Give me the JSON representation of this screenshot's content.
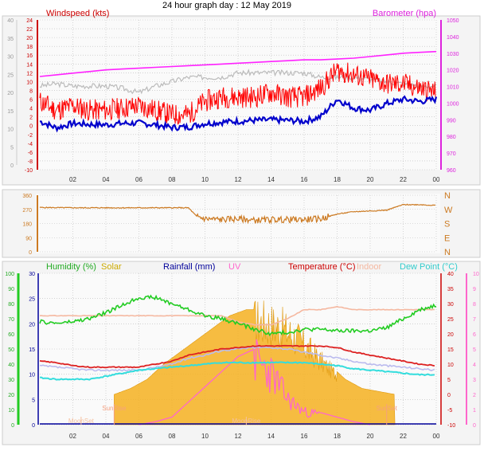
{
  "title": "24 hour graph day : 12 May 2019",
  "colors": {
    "wind": "#ff0000",
    "wind_avg": "#0000cc",
    "gust_bg": "#bbbbbb",
    "baro": "#ff22ff",
    "direction": "#cc7a22",
    "humidity": "#22cc22",
    "solar": "#f5b020",
    "rain": "#000099",
    "uv": "#ff66cc",
    "temp": "#dd2222",
    "indoor": "#f5b8a0",
    "dew": "#33dddd",
    "feels": "#bbbbee",
    "grid": "#bbbbbb"
  },
  "chart_data": [
    {
      "type": "line",
      "name": "wind",
      "left_title": "Windspeed (kts)",
      "right_title": "Barometer (hpa)",
      "x_ticks": [
        "02",
        "04",
        "06",
        "08",
        "10",
        "12",
        "14",
        "16",
        "18",
        "20",
        "22",
        "00"
      ],
      "left_outer_ticks": [
        "0",
        "5",
        "10",
        "15",
        "20",
        "25",
        "30",
        "35",
        "40"
      ],
      "left_inner_ticks": [
        "-10",
        "-8",
        "-6",
        "-4",
        "-2",
        "0",
        "2",
        "4",
        "6",
        "8",
        "10",
        "12",
        "14",
        "16",
        "18",
        "20",
        "22",
        "24"
      ],
      "right_ticks": [
        "960",
        "970",
        "980",
        "990",
        "1000",
        "1010",
        "1020",
        "1030",
        "1040",
        "1050"
      ],
      "ylim_wind": [
        -10,
        24
      ],
      "ylim_baro": [
        960,
        1050
      ],
      "x_hours": [
        0,
        1,
        2,
        3,
        4,
        5,
        6,
        7,
        8,
        9,
        10,
        11,
        12,
        13,
        14,
        15,
        16,
        17,
        18,
        19,
        20,
        21,
        22,
        23,
        24
      ],
      "wind_avg": [
        1,
        -0.5,
        0.5,
        0.3,
        0.2,
        0.5,
        0.6,
        0.2,
        -0.4,
        -0.3,
        0.5,
        0.8,
        1,
        1.2,
        1.3,
        1.2,
        1,
        2,
        6,
        4,
        3.5,
        5,
        6,
        5.5,
        6
      ],
      "wind_gust": [
        5,
        3,
        4,
        3,
        3,
        3.5,
        4,
        3,
        2,
        2,
        5,
        6,
        6,
        6,
        7,
        6,
        6,
        8,
        12,
        11,
        10,
        9,
        9,
        8,
        7
      ],
      "gust_top": [
        9,
        9.5,
        9,
        9,
        9,
        8.5,
        7.5,
        9,
        10,
        11,
        11,
        11,
        12,
        12,
        12,
        12,
        12,
        11,
        11,
        11,
        10.5,
        10,
        9.5,
        9,
        9
      ],
      "baro": [
        1016,
        1017,
        1018,
        1019,
        1020,
        1020.5,
        1021,
        1021.5,
        1022,
        1022.5,
        1023,
        1023.5,
        1024,
        1024.5,
        1025,
        1025.5,
        1026,
        1026,
        1026.5,
        1027,
        1028,
        1029,
        1030,
        1030.5,
        1031
      ]
    },
    {
      "type": "line",
      "name": "direction",
      "left_ticks": [
        "0",
        "90",
        "180",
        "270",
        "360"
      ],
      "right_ticks": [
        "N",
        "W",
        "S",
        "E",
        "N"
      ],
      "ylim": [
        0,
        360
      ],
      "x_hours": [
        0,
        2,
        4,
        6,
        8,
        9,
        9.5,
        10,
        11,
        12,
        13,
        14,
        15,
        16,
        17,
        18,
        19,
        20,
        21,
        22,
        23,
        24
      ],
      "values": [
        282,
        280,
        280,
        280,
        280,
        280,
        225,
        210,
        205,
        210,
        200,
        205,
        205,
        205,
        210,
        240,
        255,
        260,
        265,
        300,
        300,
        295
      ]
    },
    {
      "type": "line",
      "name": "climate",
      "labels": {
        "humidity": "Humidity (%)",
        "solar": "Solar",
        "rain": "Rainfall (mm)",
        "uv": "UV",
        "temp": "Temperature (°C)",
        "indoor": "Indoor",
        "dew": "Dew Point (°C)",
        "moonset": "MoonSet",
        "sunrise": "SunRise",
        "moonrise": "MoonRise",
        "sunset": "SunSet"
      },
      "x_ticks": [
        "02",
        "04",
        "06",
        "08",
        "10",
        "12",
        "14",
        "16",
        "18",
        "20",
        "22",
        "00"
      ],
      "hum_ticks": [
        "0",
        "10",
        "20",
        "30",
        "40",
        "50",
        "60",
        "70",
        "80",
        "90",
        "100"
      ],
      "rain_ticks": [
        "0",
        "5",
        "10",
        "15",
        "20",
        "25",
        "30"
      ],
      "temp_ticks": [
        "-10",
        "-5",
        "0",
        "5",
        "10",
        "15",
        "20",
        "25",
        "30",
        "35",
        "40"
      ],
      "uv_ticks": [
        "0",
        "1",
        "2",
        "3",
        "4",
        "5",
        "6",
        "7",
        "8",
        "9",
        "10"
      ],
      "ylim_temp": [
        -10,
        40
      ],
      "ylim_hum": [
        0,
        100
      ],
      "ylim_uv": [
        0,
        10
      ],
      "x_hours": [
        0,
        1,
        2,
        3,
        4,
        5,
        6,
        7,
        8,
        9,
        10,
        11,
        12,
        13,
        14,
        15,
        16,
        17,
        18,
        19,
        20,
        21,
        22,
        23,
        24
      ],
      "humidity": [
        68,
        67,
        68,
        70,
        74,
        79,
        84,
        84,
        80,
        76,
        72,
        70,
        67,
        63,
        60,
        61,
        63,
        63,
        62,
        62,
        62,
        64,
        70,
        76,
        79
      ],
      "temp": [
        11,
        10.5,
        9.5,
        9,
        9,
        9,
        9,
        10,
        11,
        13,
        14,
        15,
        15.5,
        16,
        16,
        16,
        16,
        16,
        15.5,
        14,
        13,
        12,
        11,
        10,
        9.5
      ],
      "dew": [
        5.5,
        5,
        5,
        5,
        6,
        7,
        8,
        8.5,
        9,
        9.5,
        10,
        10.5,
        10.5,
        10.5,
        10.5,
        10.5,
        10.5,
        10,
        9.5,
        8.5,
        8,
        7.5,
        7,
        6.5,
        6.5
      ],
      "feels": [
        9.5,
        9,
        8.5,
        8,
        8,
        8,
        8,
        9,
        10,
        12,
        13,
        14.5,
        15,
        15.5,
        15.5,
        15,
        14,
        13,
        12,
        11,
        10,
        9.5,
        9,
        8.5,
        8
      ],
      "indoor": [
        26,
        26,
        26,
        26,
        26,
        26,
        26,
        26,
        26,
        26,
        26,
        26,
        24,
        23,
        23,
        25,
        28,
        28,
        29,
        28,
        28,
        28,
        28,
        28,
        28
      ],
      "solar_x": [
        4.5,
        5.5,
        6.5,
        7.5,
        8.5,
        9.5,
        10.5,
        11.5,
        12.5,
        13.5,
        14.5,
        15.5,
        16.5,
        17.5,
        18.5,
        19.5,
        20.5,
        21.5
      ],
      "solar": [
        0,
        2,
        5,
        10,
        14,
        18,
        22,
        26,
        28,
        28,
        26,
        22,
        16,
        10,
        5,
        2,
        1,
        0
      ],
      "uv_x": [
        6,
        7,
        8,
        9,
        10,
        11,
        12,
        13,
        14,
        15,
        16,
        17,
        18,
        19,
        20
      ],
      "uv": [
        0,
        0.2,
        0.5,
        1.5,
        2.5,
        3.5,
        4.5,
        5,
        4,
        2,
        1,
        0.8,
        0.5,
        0.2,
        0
      ],
      "event_hours": {
        "moonset": 2.5,
        "sunrise": 4.5,
        "moonrise": 12.5,
        "sunset": 21
      }
    }
  ]
}
